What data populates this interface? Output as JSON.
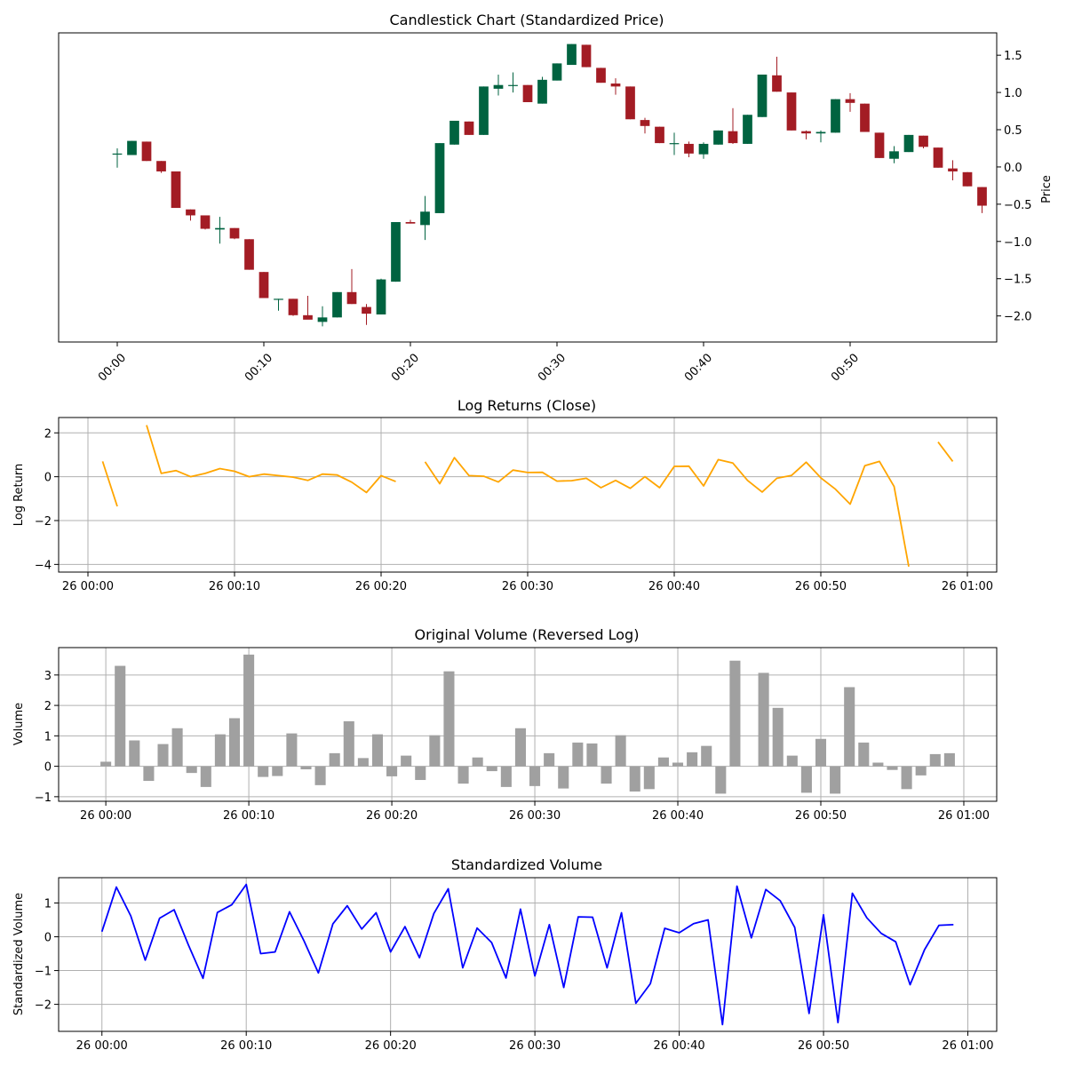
{
  "colors": {
    "up": "#006340",
    "down": "#a31c24",
    "returns": "#ffa500",
    "volume_bar": "#a0a0a0",
    "std_volume": "#0000ff",
    "grid": "#b0b0b0"
  },
  "chart_data": [
    {
      "type": "candlestick",
      "title": "Candlestick Chart (Standardized Price)",
      "ylabel": "Price",
      "xlabel": "",
      "y_axis_side": "right",
      "grid": false,
      "xlim": [
        -4,
        60
      ],
      "ylim": [
        -2.35,
        1.8
      ],
      "y_ticks": [
        1.5,
        1.0,
        0.5,
        0.0,
        -0.5,
        -1.0,
        -1.5,
        -2.0
      ],
      "y_tick_labels": [
        "1.5",
        "1.0",
        "0.5",
        "0.0",
        "−0.5",
        "−1.0",
        "−1.5",
        "−2.0"
      ],
      "x_ticks": [
        0,
        10,
        20,
        30,
        40,
        50
      ],
      "x_tick_labels": [
        "00:00",
        "00:10",
        "00:20",
        "00:30",
        "00:40",
        "00:50"
      ],
      "x_tick_rotation": -45,
      "candles": [
        {
          "x": 0,
          "open": 0.18,
          "high": 0.25,
          "low": -0.01,
          "close": 0.18
        },
        {
          "x": 1,
          "open": 0.16,
          "high": 0.35,
          "low": 0.16,
          "close": 0.35
        },
        {
          "x": 2,
          "open": 0.34,
          "high": 0.34,
          "low": 0.08,
          "close": 0.08
        },
        {
          "x": 3,
          "open": 0.08,
          "high": 0.08,
          "low": -0.08,
          "close": -0.06
        },
        {
          "x": 4,
          "open": -0.06,
          "high": -0.06,
          "low": -0.55,
          "close": -0.55
        },
        {
          "x": 5,
          "open": -0.57,
          "high": -0.57,
          "low": -0.72,
          "close": -0.65
        },
        {
          "x": 6,
          "open": -0.65,
          "high": -0.65,
          "low": -0.84,
          "close": -0.83
        },
        {
          "x": 7,
          "open": -0.84,
          "high": -0.67,
          "low": -1.03,
          "close": -0.82
        },
        {
          "x": 8,
          "open": -0.82,
          "high": -0.82,
          "low": -0.97,
          "close": -0.96
        },
        {
          "x": 9,
          "open": -0.97,
          "high": -0.97,
          "low": -1.38,
          "close": -1.38
        },
        {
          "x": 10,
          "open": -1.41,
          "high": -1.41,
          "low": -1.76,
          "close": -1.76
        },
        {
          "x": 11,
          "open": -1.78,
          "high": -1.77,
          "low": -1.93,
          "close": -1.77
        },
        {
          "x": 12,
          "open": -1.77,
          "high": -1.77,
          "low": -2.0,
          "close": -1.99
        },
        {
          "x": 13,
          "open": -1.99,
          "high": -1.73,
          "low": -2.04,
          "close": -2.05
        },
        {
          "x": 14,
          "open": -2.08,
          "high": -1.87,
          "low": -2.14,
          "close": -2.02
        },
        {
          "x": 15,
          "open": -2.02,
          "high": -1.68,
          "low": -2.02,
          "close": -1.68
        },
        {
          "x": 16,
          "open": -1.68,
          "high": -1.37,
          "low": -1.84,
          "close": -1.84
        },
        {
          "x": 17,
          "open": -1.88,
          "high": -1.84,
          "low": -2.12,
          "close": -1.97
        },
        {
          "x": 18,
          "open": -1.98,
          "high": -1.5,
          "low": -1.98,
          "close": -1.51
        },
        {
          "x": 19,
          "open": -1.54,
          "high": -0.74,
          "low": -1.54,
          "close": -0.74
        },
        {
          "x": 20,
          "open": -0.74,
          "high": -0.71,
          "low": -0.76,
          "close": -0.76
        },
        {
          "x": 21,
          "open": -0.78,
          "high": -0.39,
          "low": -0.98,
          "close": -0.6
        },
        {
          "x": 22,
          "open": -0.62,
          "high": 0.32,
          "low": -0.62,
          "close": 0.32
        },
        {
          "x": 23,
          "open": 0.3,
          "high": 0.62,
          "low": 0.3,
          "close": 0.62
        },
        {
          "x": 24,
          "open": 0.61,
          "high": 0.61,
          "low": 0.43,
          "close": 0.43
        },
        {
          "x": 25,
          "open": 0.43,
          "high": 1.08,
          "low": 0.43,
          "close": 1.08
        },
        {
          "x": 26,
          "open": 1.05,
          "high": 1.24,
          "low": 0.96,
          "close": 1.1
        },
        {
          "x": 27,
          "open": 1.1,
          "high": 1.27,
          "low": 1.0,
          "close": 1.1
        },
        {
          "x": 28,
          "open": 1.1,
          "high": 1.1,
          "low": 0.87,
          "close": 0.87
        },
        {
          "x": 29,
          "open": 0.85,
          "high": 1.21,
          "low": 0.85,
          "close": 1.17
        },
        {
          "x": 30,
          "open": 1.16,
          "high": 1.39,
          "low": 1.16,
          "close": 1.39
        },
        {
          "x": 31,
          "open": 1.37,
          "high": 1.65,
          "low": 1.37,
          "close": 1.65
        },
        {
          "x": 32,
          "open": 1.64,
          "high": 1.64,
          "low": 1.34,
          "close": 1.34
        },
        {
          "x": 33,
          "open": 1.33,
          "high": 1.33,
          "low": 1.13,
          "close": 1.13
        },
        {
          "x": 34,
          "open": 1.12,
          "high": 1.19,
          "low": 0.97,
          "close": 1.08
        },
        {
          "x": 35,
          "open": 1.08,
          "high": 1.08,
          "low": 0.64,
          "close": 0.64
        },
        {
          "x": 36,
          "open": 0.63,
          "high": 0.66,
          "low": 0.45,
          "close": 0.55
        },
        {
          "x": 37,
          "open": 0.54,
          "high": 0.54,
          "low": 0.32,
          "close": 0.32
        },
        {
          "x": 38,
          "open": 0.31,
          "high": 0.46,
          "low": 0.16,
          "close": 0.32
        },
        {
          "x": 39,
          "open": 0.31,
          "high": 0.34,
          "low": 0.13,
          "close": 0.18
        },
        {
          "x": 40,
          "open": 0.17,
          "high": 0.33,
          "low": 0.11,
          "close": 0.31
        },
        {
          "x": 41,
          "open": 0.3,
          "high": 0.49,
          "low": 0.3,
          "close": 0.49
        },
        {
          "x": 42,
          "open": 0.48,
          "high": 0.79,
          "low": 0.31,
          "close": 0.32
        },
        {
          "x": 43,
          "open": 0.31,
          "high": 0.7,
          "low": 0.31,
          "close": 0.7
        },
        {
          "x": 44,
          "open": 0.67,
          "high": 1.24,
          "low": 0.67,
          "close": 1.24
        },
        {
          "x": 45,
          "open": 1.23,
          "high": 1.48,
          "low": 1.01,
          "close": 1.01
        },
        {
          "x": 46,
          "open": 1.0,
          "high": 1.0,
          "low": 0.49,
          "close": 0.49
        },
        {
          "x": 47,
          "open": 0.48,
          "high": 0.49,
          "low": 0.37,
          "close": 0.45
        },
        {
          "x": 48,
          "open": 0.45,
          "high": 0.49,
          "low": 0.33,
          "close": 0.47
        },
        {
          "x": 49,
          "open": 0.46,
          "high": 0.91,
          "low": 0.46,
          "close": 0.91
        },
        {
          "x": 50,
          "open": 0.91,
          "high": 0.99,
          "low": 0.74,
          "close": 0.86
        },
        {
          "x": 51,
          "open": 0.85,
          "high": 0.85,
          "low": 0.47,
          "close": 0.47
        },
        {
          "x": 52,
          "open": 0.46,
          "high": 0.46,
          "low": 0.12,
          "close": 0.12
        },
        {
          "x": 53,
          "open": 0.11,
          "high": 0.28,
          "low": 0.05,
          "close": 0.21
        },
        {
          "x": 54,
          "open": 0.2,
          "high": 0.43,
          "low": 0.2,
          "close": 0.43
        },
        {
          "x": 55,
          "open": 0.42,
          "high": 0.42,
          "low": 0.25,
          "close": 0.27
        },
        {
          "x": 56,
          "open": 0.26,
          "high": 0.26,
          "low": -0.01,
          "close": -0.01
        },
        {
          "x": 57,
          "open": -0.02,
          "high": 0.09,
          "low": -0.18,
          "close": -0.06
        },
        {
          "x": 58,
          "open": -0.07,
          "high": -0.07,
          "low": -0.26,
          "close": -0.26
        },
        {
          "x": 59,
          "open": -0.27,
          "high": -0.27,
          "low": -0.62,
          "close": -0.52
        }
      ]
    },
    {
      "type": "line",
      "title": "Log Returns (Close)",
      "ylabel": "Log Return",
      "xlabel": "",
      "grid": true,
      "xlim": [
        -2,
        62
      ],
      "ylim": [
        -4.35,
        2.7
      ],
      "y_ticks": [
        2,
        0,
        -2,
        -4
      ],
      "y_tick_labels": [
        "2",
        "0",
        "−2",
        "−4"
      ],
      "x_ticks": [
        0,
        10,
        20,
        30,
        40,
        50,
        60
      ],
      "x_tick_labels": [
        "26 00:00",
        "26 00:10",
        "26 00:20",
        "26 00:30",
        "26 00:40",
        "26 00:50",
        "26 01:00"
      ],
      "series": [
        {
          "x": [
            0,
            1,
            2,
            3,
            4,
            5,
            6,
            7,
            8,
            9,
            10,
            11,
            12,
            13,
            14,
            15,
            16,
            17,
            18,
            19,
            20,
            21,
            22,
            23,
            24,
            25,
            26,
            27,
            28,
            29,
            30,
            31,
            32,
            33,
            34,
            35,
            36,
            37,
            38,
            39,
            40,
            41,
            42,
            43,
            44,
            45,
            46,
            47,
            48,
            49,
            50,
            51,
            52,
            53,
            54,
            55,
            56,
            57,
            58,
            59
          ],
          "y": [
            null,
            0.7,
            -1.35,
            null,
            2.35,
            0.15,
            0.28,
            0.0,
            0.15,
            0.37,
            0.25,
            0.0,
            0.12,
            0.05,
            -0.02,
            -0.17,
            0.12,
            0.08,
            -0.25,
            -0.72,
            0.05,
            -0.22,
            null,
            0.68,
            -0.32,
            0.87,
            0.05,
            0.02,
            -0.24,
            0.3,
            0.19,
            0.2,
            -0.2,
            -0.18,
            -0.07,
            -0.5,
            -0.17,
            -0.53,
            0.0,
            -0.5,
            0.47,
            0.48,
            -0.42,
            0.78,
            0.62,
            -0.17,
            -0.7,
            -0.07,
            0.06,
            0.66,
            -0.05,
            -0.57,
            -1.25,
            0.5,
            0.7,
            -0.45,
            -4.1,
            null,
            1.58,
            0.7
          ]
        }
      ]
    },
    {
      "type": "bar",
      "title": "Original Volume (Reversed Log)",
      "ylabel": "Volume",
      "xlabel": "",
      "grid": true,
      "xlim": [
        -3.3,
        62.3
      ],
      "ylim": [
        -1.15,
        3.9
      ],
      "y_ticks": [
        3,
        2,
        1,
        0,
        -1
      ],
      "y_tick_labels": [
        "3",
        "2",
        "1",
        "0",
        "−1"
      ],
      "x_ticks": [
        0,
        10,
        20,
        30,
        40,
        50,
        60
      ],
      "x_tick_labels": [
        "26 00:00",
        "26 00:10",
        "26 00:20",
        "26 00:30",
        "26 00:40",
        "26 00:50",
        "26 01:00"
      ],
      "x": [
        0,
        1,
        2,
        3,
        4,
        5,
        6,
        7,
        8,
        9,
        10,
        11,
        12,
        13,
        14,
        15,
        16,
        17,
        18,
        19,
        20,
        21,
        22,
        23,
        24,
        25,
        26,
        27,
        28,
        29,
        30,
        31,
        32,
        33,
        34,
        35,
        36,
        37,
        38,
        39,
        40,
        41,
        42,
        43,
        44,
        45,
        46,
        47,
        48,
        49,
        50,
        51,
        52,
        53,
        54,
        55,
        56,
        57,
        58,
        59
      ],
      "values": [
        0.15,
        3.3,
        0.85,
        -0.48,
        0.73,
        1.25,
        -0.22,
        -0.68,
        1.05,
        1.58,
        3.67,
        -0.35,
        -0.32,
        1.08,
        -0.1,
        -0.62,
        0.43,
        1.48,
        0.27,
        1.05,
        -0.33,
        0.35,
        -0.45,
        1.02,
        3.12,
        -0.57,
        0.29,
        -0.16,
        -0.68,
        1.25,
        -0.65,
        0.43,
        -0.73,
        0.78,
        0.75,
        -0.57,
        1.02,
        -0.83,
        -0.75,
        0.29,
        0.12,
        0.46,
        0.67,
        -0.9,
        3.47,
        0.0,
        3.07,
        1.92,
        0.35,
        -0.87,
        0.9,
        -0.9,
        2.6,
        0.78,
        0.12,
        -0.12,
        -0.75,
        -0.3,
        0.4,
        0.43
      ]
    },
    {
      "type": "line",
      "title": "Standardized Volume",
      "ylabel": "Standardized Volume",
      "xlabel": "",
      "grid": true,
      "xlim": [
        -3,
        62
      ],
      "ylim": [
        -2.8,
        1.75
      ],
      "y_ticks": [
        1,
        0,
        -1,
        -2
      ],
      "y_tick_labels": [
        "1",
        "0",
        "−1",
        "−2"
      ],
      "x_ticks": [
        0,
        10,
        20,
        30,
        40,
        50,
        60
      ],
      "x_tick_labels": [
        "26 00:00",
        "26 00:10",
        "26 00:20",
        "26 00:30",
        "26 00:40",
        "26 00:50",
        "26 01:00"
      ],
      "series": [
        {
          "x": [
            0,
            1,
            2,
            3,
            4,
            5,
            6,
            7,
            8,
            9,
            10,
            11,
            12,
            13,
            14,
            15,
            16,
            17,
            18,
            19,
            20,
            21,
            22,
            23,
            24,
            25,
            26,
            27,
            28,
            29,
            30,
            31,
            32,
            33,
            34,
            35,
            36,
            37,
            38,
            39,
            40,
            41,
            42,
            43,
            44,
            45,
            46,
            47,
            48,
            49,
            50,
            51,
            52,
            53,
            54,
            55,
            56,
            57,
            58,
            59
          ],
          "y": [
            0.15,
            1.47,
            0.62,
            -0.69,
            0.55,
            0.8,
            -0.25,
            -1.23,
            0.72,
            0.95,
            1.55,
            -0.5,
            -0.45,
            0.74,
            -0.12,
            -1.07,
            0.38,
            0.92,
            0.23,
            0.71,
            -0.45,
            0.3,
            -0.62,
            0.69,
            1.42,
            -0.92,
            0.26,
            -0.17,
            -1.22,
            0.82,
            -1.16,
            0.36,
            -1.5,
            0.59,
            0.58,
            -0.92,
            0.71,
            -1.97,
            -1.39,
            0.25,
            0.12,
            0.39,
            0.5,
            -2.6,
            1.5,
            -0.03,
            1.4,
            1.07,
            0.28,
            -2.27,
            0.65,
            -2.54,
            1.29,
            0.56,
            0.1,
            -0.15,
            -1.42,
            -0.38,
            0.34,
            0.36
          ]
        }
      ]
    }
  ]
}
